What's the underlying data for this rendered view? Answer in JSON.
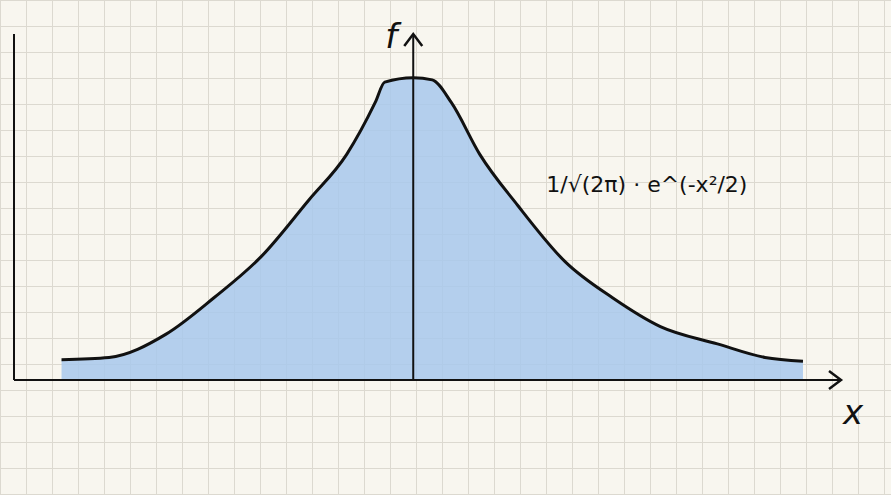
{
  "chart_data": {
    "type": "area",
    "x": [
      -3.7,
      -3.2,
      -2.6,
      -2.1,
      -1.6,
      -1.1,
      -0.7,
      -0.4,
      -0.3,
      0,
      0.2,
      0.4,
      0.7,
      1.1,
      1.6,
      2.1,
      2.6,
      3.2,
      3.7,
      4.1
    ],
    "values": [
      0.027,
      0.03,
      0.061,
      0.109,
      0.164,
      0.239,
      0.3,
      0.369,
      0.396,
      0.402,
      0.399,
      0.369,
      0.3,
      0.232,
      0.157,
      0.109,
      0.071,
      0.048,
      0.03,
      0.025
    ],
    "color": "#a8c8ec",
    "xlim": [
      -4.2,
      4.5
    ],
    "ylim": [
      0,
      0.46
    ],
    "xlabel": "x",
    "ylabel": "f",
    "annotation": {
      "text": "1/√(2π) · e^(-x²/2)",
      "x": 1.4,
      "y": 0.25
    },
    "tick_labels": false,
    "grid": false
  }
}
